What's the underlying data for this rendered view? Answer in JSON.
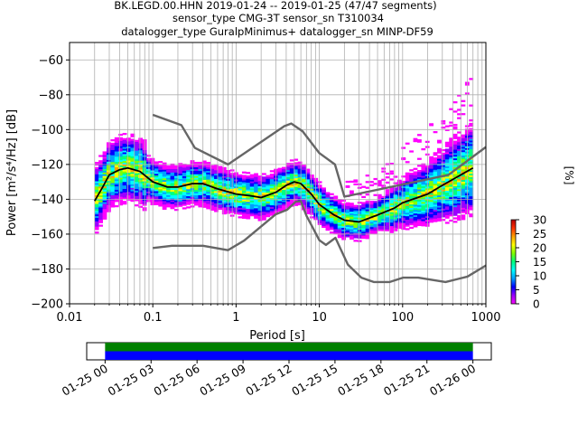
{
  "chart_data": [
    {
      "type": "heatmap",
      "title_lines": [
        "BK.LEGD.00.HHN   2019-01-24 -- 2019-01-25  (47/47 segments)",
        "sensor_type CMG-3T sensor_sn T310034",
        "datalogger_type GuralpMinimus+ datalogger_sn MINP-DF59"
      ],
      "xlabel": "Period [s]",
      "ylabel": "Power [m²/s⁴/Hz] [dB]",
      "x_scale": "log",
      "xlim": [
        0.01,
        1000
      ],
      "ylim": [
        -200,
        -50
      ],
      "x_ticks": [
        {
          "value": 0.01,
          "label": "0.01"
        },
        {
          "value": 0.1,
          "label": "0.1"
        },
        {
          "value": 1,
          "label": "1"
        },
        {
          "value": 10,
          "label": "10"
        },
        {
          "value": 100,
          "label": "100"
        },
        {
          "value": 1000,
          "label": "1000"
        }
      ],
      "y_ticks": [
        {
          "value": -60,
          "label": "−60"
        },
        {
          "value": -80,
          "label": "−80"
        },
        {
          "value": -100,
          "label": "−100"
        },
        {
          "value": -120,
          "label": "−120"
        },
        {
          "value": -140,
          "label": "−140"
        },
        {
          "value": -160,
          "label": "−160"
        },
        {
          "value": -180,
          "label": "−180"
        },
        {
          "value": -200,
          "label": "−200"
        }
      ],
      "grid": true,
      "series": [
        {
          "role": "noise_model_high",
          "color": "#666666",
          "points": [
            [
              0.1,
              -91.5
            ],
            [
              0.22,
              -97.4
            ],
            [
              0.32,
              -110.5
            ],
            [
              0.8,
              -120
            ],
            [
              3.8,
              -98
            ],
            [
              4.6,
              -96.5
            ],
            [
              6.3,
              -101
            ],
            [
              10,
              -113.5
            ],
            [
              15.4,
              -120
            ],
            [
              20,
              -138.5
            ],
            [
              355,
              -126
            ],
            [
              1000,
              -110
            ]
          ]
        },
        {
          "role": "noise_model_low",
          "color": "#666666",
          "points": [
            [
              0.1,
              -168
            ],
            [
              0.17,
              -166.7
            ],
            [
              0.4,
              -166.7
            ],
            [
              0.8,
              -169.2
            ],
            [
              1.25,
              -163.7
            ],
            [
              3,
              -148.6
            ],
            [
              4.1,
              -146
            ],
            [
              5.2,
              -141.4
            ],
            [
              6,
              -141.1
            ],
            [
              7,
              -149.4
            ],
            [
              10,
              -163.5
            ],
            [
              12,
              -166.2
            ],
            [
              15.6,
              -162.1
            ],
            [
              22,
              -177.5
            ],
            [
              32,
              -185
            ],
            [
              45,
              -187.5
            ],
            [
              70,
              -187.5
            ],
            [
              101,
              -185
            ],
            [
              154,
              -185
            ],
            [
              328,
              -187.5
            ],
            [
              600,
              -184.4
            ],
            [
              1000,
              -178
            ]
          ]
        },
        {
          "role": "mean_psd",
          "color": "#000000",
          "points": [
            [
              0.02,
              -141
            ],
            [
              0.025,
              -133
            ],
            [
              0.03,
              -126
            ],
            [
              0.04,
              -123
            ],
            [
              0.05,
              -122
            ],
            [
              0.07,
              -124
            ],
            [
              0.1,
              -130
            ],
            [
              0.15,
              -133
            ],
            [
              0.2,
              -133
            ],
            [
              0.3,
              -131
            ],
            [
              0.4,
              -131
            ],
            [
              0.6,
              -134
            ],
            [
              1,
              -137
            ],
            [
              1.5,
              -138
            ],
            [
              2,
              -139
            ],
            [
              3,
              -136
            ],
            [
              4,
              -132
            ],
            [
              5,
              -130
            ],
            [
              6,
              -131
            ],
            [
              8,
              -137
            ],
            [
              10,
              -143
            ],
            [
              15,
              -149
            ],
            [
              20,
              -152
            ],
            [
              30,
              -153
            ],
            [
              50,
              -149
            ],
            [
              80,
              -145
            ],
            [
              100,
              -142
            ],
            [
              200,
              -137
            ],
            [
              300,
              -132
            ],
            [
              500,
              -126
            ],
            [
              700,
              -122
            ]
          ]
        }
      ],
      "density": {
        "colormap": "pqlx",
        "min_period": 0.02,
        "max_period": 700
      },
      "colorbar": {
        "label": "[%]",
        "min": 0,
        "max": 30,
        "ticks": [
          {
            "value": 0,
            "label": "0"
          },
          {
            "value": 5,
            "label": "5"
          },
          {
            "value": 10,
            "label": "10"
          },
          {
            "value": 15,
            "label": "15"
          },
          {
            "value": 20,
            "label": "20"
          },
          {
            "value": 25,
            "label": "25"
          },
          {
            "value": 30,
            "label": "30"
          }
        ],
        "colors": [
          "#ffffff",
          "#ff00ff",
          "#9a00ff",
          "#0000ff",
          "#00a0ff",
          "#00ffff",
          "#00ff80",
          "#80ff00",
          "#ffff00",
          "#ffa000",
          "#ff3000",
          "#b40000"
        ]
      }
    },
    {
      "type": "timeline",
      "x_ticks": [
        {
          "hours": 0,
          "label": "01-25 00"
        },
        {
          "hours": 3,
          "label": "01-25 03"
        },
        {
          "hours": 6,
          "label": "01-25 06"
        },
        {
          "hours": 9,
          "label": "01-25 09"
        },
        {
          "hours": 12,
          "label": "01-25 12"
        },
        {
          "hours": 15,
          "label": "01-25 15"
        },
        {
          "hours": 18,
          "label": "01-25 18"
        },
        {
          "hours": 21,
          "label": "01-25 21"
        },
        {
          "hours": 24,
          "label": "01-26 00"
        }
      ],
      "xlim_hours": [
        -1.2,
        25.2
      ],
      "covered_hours": [
        0,
        24
      ],
      "bands": [
        {
          "name": "top",
          "color": "#008000"
        },
        {
          "name": "bottom",
          "color": "#0000ff"
        }
      ]
    }
  ]
}
